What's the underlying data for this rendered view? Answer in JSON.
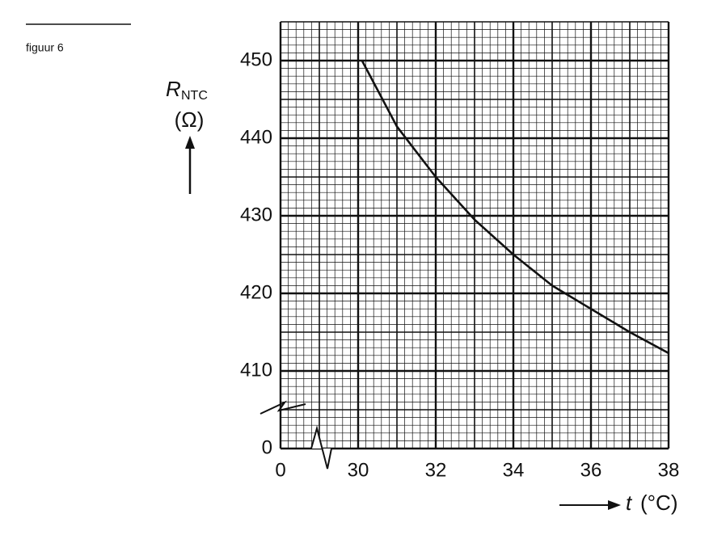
{
  "chart_data": {
    "type": "line",
    "caption": "figuur 6",
    "ylabel": "R",
    "ylabel_sub": "NTC",
    "yunit": "(Ω)",
    "xlabel": "t",
    "xunit": "(°C)",
    "x": [
      30.1,
      31,
      32,
      33,
      34,
      35,
      36,
      37,
      38
    ],
    "series": [
      {
        "name": "R_NTC",
        "color": "#111111",
        "values": [
          450,
          441.5,
          435,
          429.5,
          425,
          421,
          418,
          415,
          412.3
        ]
      }
    ],
    "xlim": [
      0,
      38
    ],
    "xbreak": [
      0,
      28
    ],
    "xticks": [
      0,
      30,
      32,
      34,
      36,
      38
    ],
    "ylim": [
      0,
      455
    ],
    "ybreak": [
      0,
      400
    ],
    "yticks": [
      0,
      410,
      420,
      430,
      440,
      450
    ],
    "grid": true
  }
}
